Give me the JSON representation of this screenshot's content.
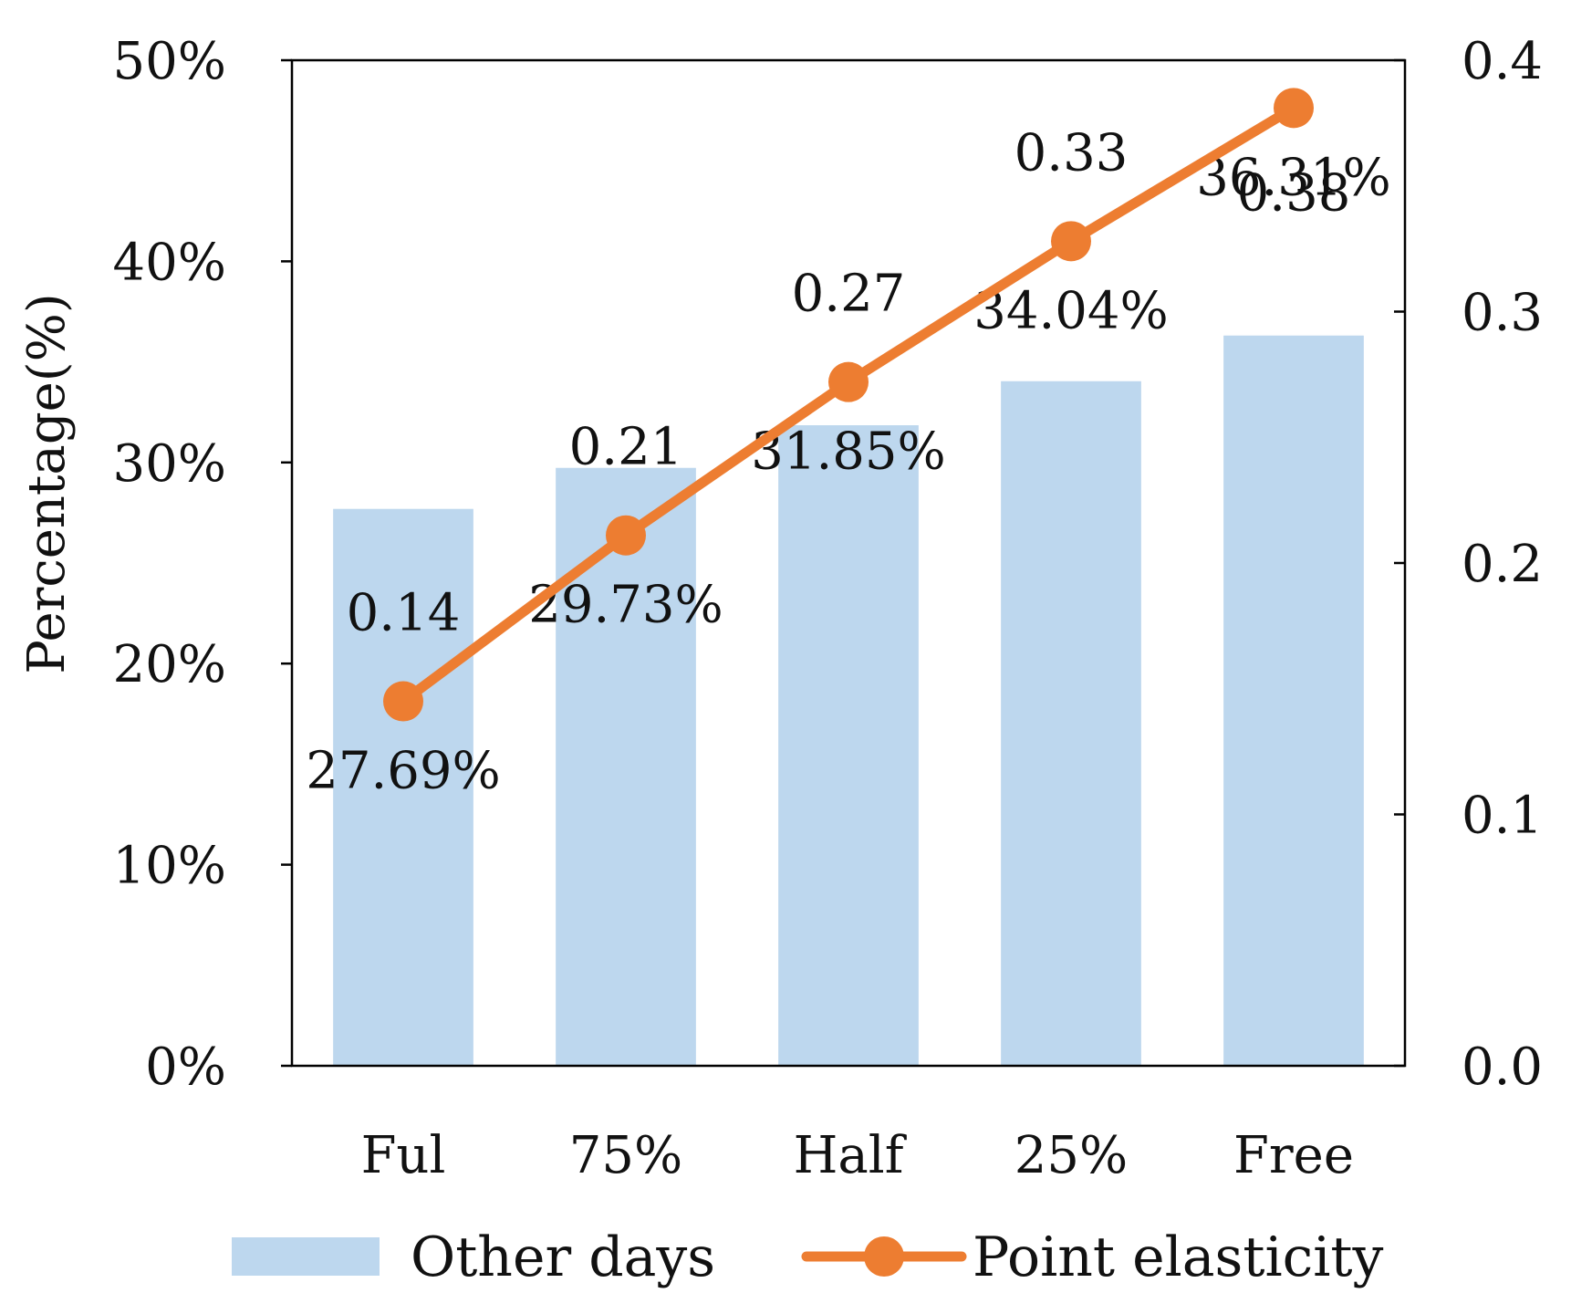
{
  "chart_data": {
    "type": "bar",
    "title": "",
    "xlabel": "",
    "ylabel": "Percentage(%)",
    "y2label": "",
    "categories": [
      "Ful",
      "75%",
      "Half",
      "25%",
      "Free"
    ],
    "ylim": [
      0,
      50
    ],
    "y2lim": [
      0,
      0.4
    ],
    "yticks": [
      "0%",
      "10%",
      "20%",
      "30%",
      "40%",
      "50%"
    ],
    "y2ticks": [
      "0.0",
      "0.1",
      "0.2",
      "0.3",
      "0.4"
    ],
    "series": [
      {
        "name": "Other days",
        "type": "bar",
        "axis": "left",
        "values": [
          27.69,
          29.73,
          31.85,
          34.04,
          36.31
        ],
        "labels": [
          "27.69%",
          "29.73%",
          "31.85%",
          "34.04%",
          "36.31%"
        ],
        "color": "#bdd7ee"
      },
      {
        "name": "Point elasticity",
        "type": "line",
        "axis": "right",
        "values": [
          0.145,
          0.211,
          0.272,
          0.328,
          0.381
        ],
        "labels": [
          "0.14",
          "0.21",
          "0.27",
          "0.33",
          "0.38"
        ],
        "color": "#ed7d31"
      }
    ],
    "grid": false,
    "legend": "bottom"
  }
}
